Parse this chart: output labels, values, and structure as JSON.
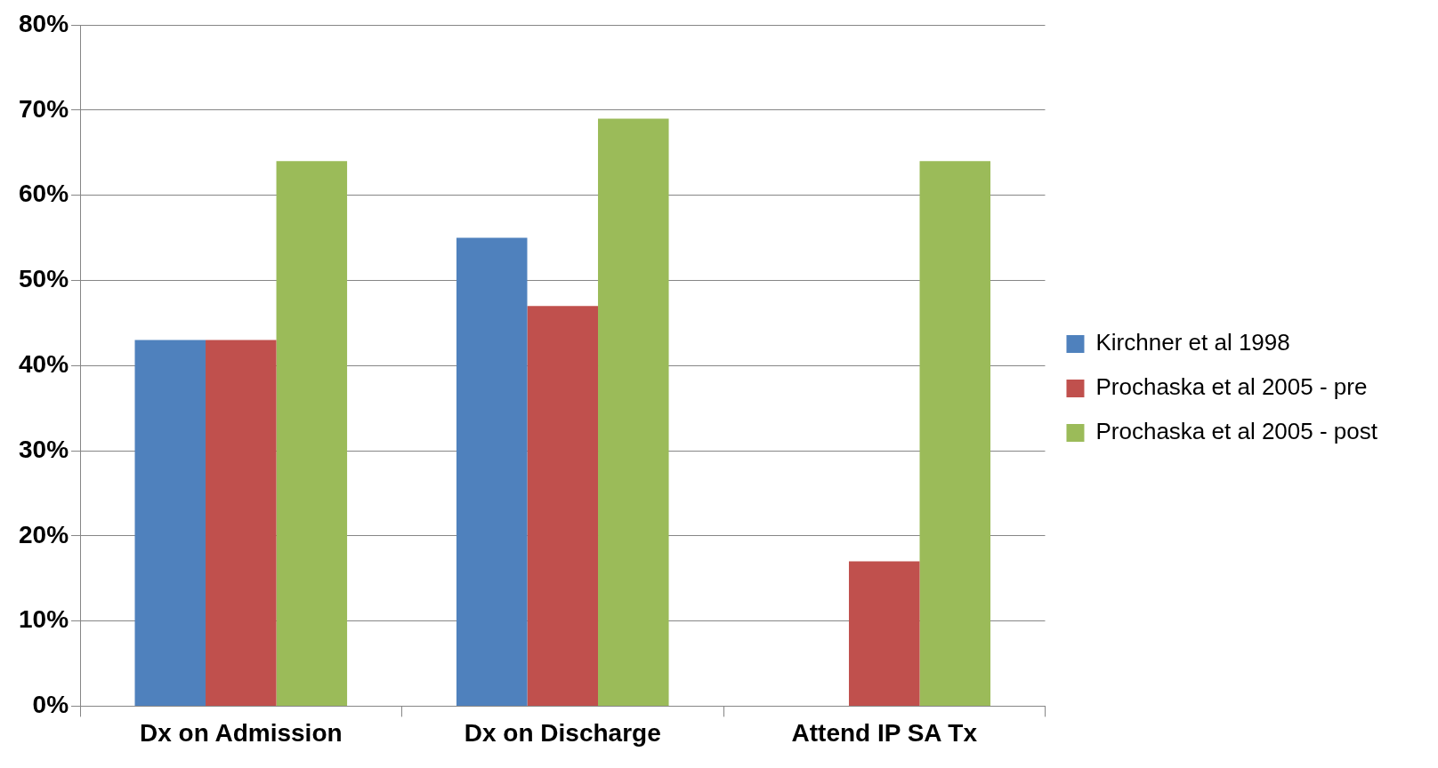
{
  "chart_data": {
    "type": "bar",
    "categories": [
      "Dx on Admission",
      "Dx on Discharge",
      "Attend IP SA Tx"
    ],
    "series": [
      {
        "name": "Kirchner et al 1998",
        "color": "#4f81bd",
        "values": [
          43,
          55,
          null
        ]
      },
      {
        "name": "Prochaska et al 2005 - pre",
        "color": "#c0504d",
        "values": [
          43,
          47,
          17
        ]
      },
      {
        "name": "Prochaska et al 2005 - post",
        "color": "#9bbb59",
        "values": [
          64,
          69,
          64
        ]
      }
    ],
    "ylim": [
      0,
      80
    ],
    "yticks": [
      {
        "value": 0,
        "label": "0%"
      },
      {
        "value": 10,
        "label": "10%"
      },
      {
        "value": 20,
        "label": "20%"
      },
      {
        "value": 30,
        "label": "30%"
      },
      {
        "value": 40,
        "label": "40%"
      },
      {
        "value": 50,
        "label": "50%"
      },
      {
        "value": 60,
        "label": "60%"
      },
      {
        "value": 70,
        "label": "70%"
      },
      {
        "value": 80,
        "label": "80%"
      }
    ],
    "grid": "y",
    "legend": "right"
  }
}
